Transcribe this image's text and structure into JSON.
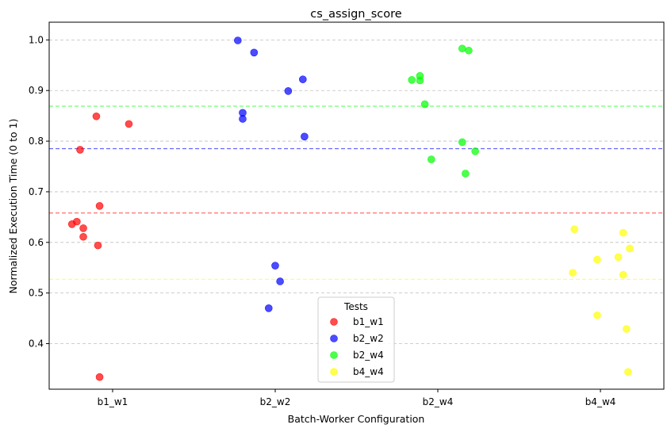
{
  "chart_data": {
    "type": "scatter",
    "title": "cs_assign_score",
    "xlabel": "Batch-Worker Configuration",
    "ylabel": "Normalized Execution Time (0 to 1)",
    "categories": [
      "b1_w1",
      "b2_w2",
      "b2_w4",
      "b4_w4"
    ],
    "ylim": [
      0.31,
      1.035
    ],
    "yticks": [
      "0.4",
      "0.5",
      "0.6",
      "0.7",
      "0.8",
      "0.9",
      "1.0"
    ],
    "grid": "horizontal dashed",
    "legend": {
      "title": "Tests",
      "position": "bottom-center"
    },
    "series": [
      {
        "name": "b1_w1",
        "color": "#ff0000",
        "mean": 0.658,
        "points": [
          {
            "x": -0.25,
            "y": 0.636
          },
          {
            "x": -0.22,
            "y": 0.641
          },
          {
            "x": -0.2,
            "y": 0.783
          },
          {
            "x": -0.18,
            "y": 0.628
          },
          {
            "x": -0.18,
            "y": 0.611
          },
          {
            "x": -0.1,
            "y": 0.849
          },
          {
            "x": -0.09,
            "y": 0.594
          },
          {
            "x": -0.08,
            "y": 0.672
          },
          {
            "x": -0.08,
            "y": 0.334
          },
          {
            "x": 0.1,
            "y": 0.834
          }
        ]
      },
      {
        "name": "b2_w2",
        "color": "#0000ff",
        "mean": 0.785,
        "points": [
          {
            "x": 0.77,
            "y": 0.999
          },
          {
            "x": 0.8,
            "y": 0.856
          },
          {
            "x": 0.8,
            "y": 0.844
          },
          {
            "x": 0.87,
            "y": 0.975
          },
          {
            "x": 0.96,
            "y": 0.47
          },
          {
            "x": 1.0,
            "y": 0.554
          },
          {
            "x": 1.03,
            "y": 0.523
          },
          {
            "x": 1.08,
            "y": 0.899
          },
          {
            "x": 1.17,
            "y": 0.922
          },
          {
            "x": 1.18,
            "y": 0.809
          }
        ]
      },
      {
        "name": "b2_w4",
        "color": "#00ff00",
        "mean": 0.869,
        "points": [
          {
            "x": 1.84,
            "y": 0.921
          },
          {
            "x": 1.89,
            "y": 0.929
          },
          {
            "x": 1.89,
            "y": 0.92
          },
          {
            "x": 1.92,
            "y": 0.873
          },
          {
            "x": 1.96,
            "y": 0.764
          },
          {
            "x": 2.15,
            "y": 0.983
          },
          {
            "x": 2.15,
            "y": 0.798
          },
          {
            "x": 2.17,
            "y": 0.736
          },
          {
            "x": 2.19,
            "y": 0.979
          },
          {
            "x": 2.23,
            "y": 0.78
          }
        ]
      },
      {
        "name": "b4_w4",
        "color": "#ffff00",
        "mean": 0.527,
        "points": [
          {
            "x": 2.83,
            "y": 0.54
          },
          {
            "x": 2.84,
            "y": 0.626
          },
          {
            "x": 2.98,
            "y": 0.566
          },
          {
            "x": 2.98,
            "y": 0.456
          },
          {
            "x": 3.11,
            "y": 0.571
          },
          {
            "x": 3.14,
            "y": 0.619
          },
          {
            "x": 3.14,
            "y": 0.536
          },
          {
            "x": 3.16,
            "y": 0.429
          },
          {
            "x": 3.18,
            "y": 0.588
          },
          {
            "x": 3.17,
            "y": 0.344
          }
        ]
      }
    ]
  }
}
